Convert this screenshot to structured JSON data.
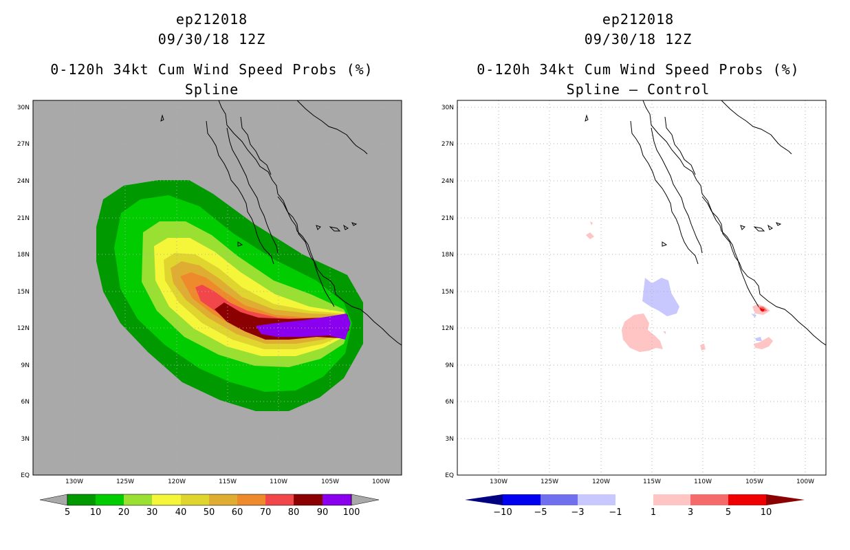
{
  "colors": {
    "background": "#a9a9a9",
    "coast": "#000000",
    "grid": "#b0b0b0"
  },
  "lat_ticks": [
    "30N",
    "27N",
    "24N",
    "21N",
    "18N",
    "15N",
    "12N",
    "9N",
    "6N",
    "3N",
    "EQ"
  ],
  "lon_ticks": [
    "130W",
    "125W",
    "120W",
    "115W",
    "110W",
    "105W",
    "100W"
  ],
  "panels": [
    {
      "storm_id": "ep212018",
      "datetime": "09/30/18 12Z",
      "product": "0-120h 34kt Cum Wind Speed Probs (%)",
      "subtitle": "Spline",
      "colorbar": {
        "labels": [
          "5",
          "10",
          "20",
          "30",
          "40",
          "50",
          "60",
          "70",
          "80",
          "90",
          "100"
        ],
        "colors": [
          "#009900",
          "#00cc00",
          "#99e033",
          "#f5f53a",
          "#e0d52e",
          "#e0ad33",
          "#ee8a2b",
          "#f2474a",
          "#8b0000",
          "#8a00ee"
        ],
        "left_arrow": "#a9a9a9",
        "right_arrow": "#a9a9a9"
      }
    },
    {
      "storm_id": "ep212018",
      "datetime": "09/30/18 12Z",
      "product": "0-120h 34kt Cum Wind Speed Probs (%)",
      "subtitle": "Spline – Control",
      "colorbar": {
        "labels": [
          "−10",
          "−5",
          "−3",
          "−1",
          "1",
          "3",
          "5",
          "10"
        ],
        "colors": [
          "#0000ee",
          "#7070ee",
          "#c8c8ff",
          "#ffffff",
          "#ffc4c4",
          "#f56a6a",
          "#ee0000"
        ],
        "left_arrow": "#000080",
        "right_arrow": "#8b0000"
      }
    }
  ]
}
